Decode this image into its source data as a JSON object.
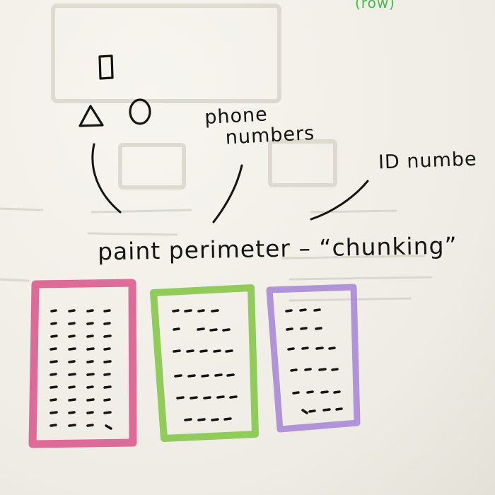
{
  "notes": {
    "corner_note": "(row)",
    "phone_label": [
      "phone",
      "numbers"
    ],
    "id_label": "ID numbe",
    "caption": "paint perimeter – “chunking”"
  },
  "colors": {
    "paper": "#f1efe8",
    "ink": "#141414",
    "pink_marker": "#d9538a",
    "green_marker": "#86c74a",
    "purple_marker": "#a98ad6",
    "green_text": "#4cb84a"
  },
  "icons": [
    "square-shape-icon",
    "triangle-shape-icon",
    "circle-shape-icon"
  ]
}
